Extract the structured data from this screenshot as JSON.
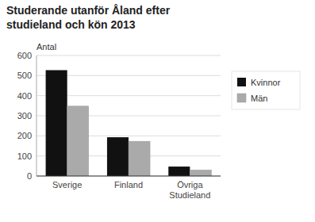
{
  "chart_data": {
    "type": "bar",
    "title": "Studerande utanför Åland efter\nstudieland och kön 2013",
    "ylabel": "Antal",
    "categories": [
      "Sverige",
      "Finland",
      "Övriga\nStudieland"
    ],
    "series": [
      {
        "name": "Kvinnor",
        "color": "#111111",
        "values": [
          527,
          193,
          47
        ]
      },
      {
        "name": "Män",
        "color": "#aaaaaa",
        "values": [
          348,
          173,
          30
        ]
      }
    ],
    "ylim": [
      0,
      600
    ],
    "yticks": [
      0,
      100,
      200,
      300,
      400,
      500,
      600
    ],
    "grid": true,
    "legend": "right"
  }
}
